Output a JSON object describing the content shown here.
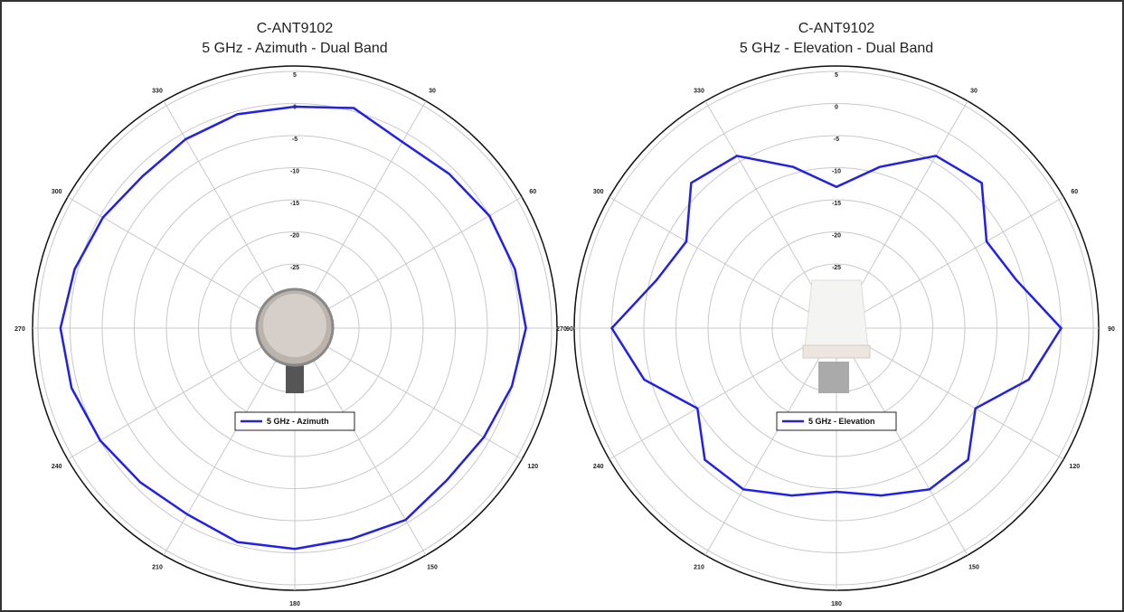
{
  "chart_data": [
    {
      "type": "polar",
      "title": "C-ANT9102",
      "subtitle": "5 GHz - Azimuth - Dual Band",
      "theta": [
        0,
        15,
        30,
        45,
        60,
        75,
        90,
        105,
        120,
        135,
        150,
        165,
        180,
        195,
        210,
        225,
        240,
        255,
        270,
        285,
        300,
        315,
        330,
        345
      ],
      "series": [
        {
          "name": "5 GHz - Azimuth",
          "color": "#2020ee",
          "values": [
            -0.5,
            0.5,
            -1.5,
            -1,
            0,
            0.5,
            1,
            0,
            -1,
            -1.5,
            -0.5,
            -1,
            -0.6,
            -0.5,
            -1.5,
            -1,
            0,
            1,
            1.5,
            0.5,
            -0.5,
            -1.5,
            -1,
            -0.5
          ]
        }
      ],
      "rlim": [
        -35,
        5
      ],
      "rticks": [
        5,
        0,
        -5,
        -10,
        -15,
        -20,
        -25
      ],
      "thetaticks": [
        30,
        60,
        90,
        120,
        150,
        180,
        210,
        240,
        270,
        300,
        330
      ],
      "grid": true
    },
    {
      "type": "polar",
      "title": "C-ANT9102",
      "subtitle": "5 GHz - Elevation - Dual Band",
      "theta": [
        0,
        15,
        30,
        45,
        60,
        75,
        90,
        105,
        120,
        135,
        150,
        165,
        180,
        195,
        210,
        225,
        240,
        255,
        270,
        285,
        300,
        315,
        330,
        345
      ],
      "series": [
        {
          "name": "5 GHz - Elevation",
          "color": "#2020ee",
          "values": [
            -13,
            -9,
            -4,
            -3,
            -8,
            -6,
            0,
            -4,
            -10,
            -6,
            -6,
            -8,
            -9.5,
            -8,
            -6,
            -6,
            -10,
            -4,
            0,
            -6,
            -8,
            -3,
            -4,
            -9
          ]
        }
      ],
      "rlim": [
        -35,
        5
      ],
      "rticks": [
        5,
        0,
        -5,
        -10,
        -15,
        -20,
        -25
      ],
      "thetaticks": [
        30,
        60,
        90,
        120,
        150,
        180,
        210,
        240,
        270,
        300,
        330
      ],
      "grid": true
    }
  ]
}
